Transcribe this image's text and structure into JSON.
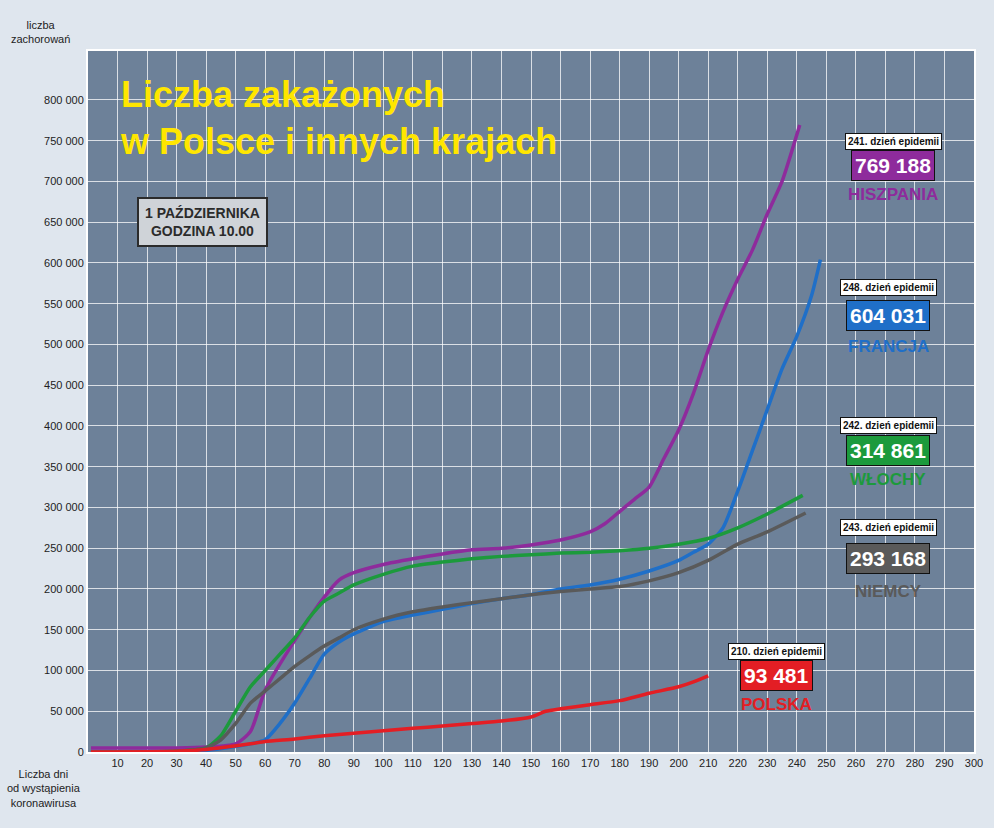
{
  "chart_data": {
    "type": "line",
    "title": [
      "Liczba zakażonych",
      "w Polsce i innych krajach"
    ],
    "subtitle": [
      "1 PAŹDZIERNIKA",
      "GODZINA 10.00"
    ],
    "y_label": [
      "liczba",
      "zachorowań"
    ],
    "x_label": [
      "Liczba dni",
      "od wystąpienia",
      "koronawirusa"
    ],
    "xlim": [
      0,
      300
    ],
    "xticks": [
      10,
      20,
      30,
      40,
      50,
      60,
      70,
      80,
      90,
      100,
      110,
      120,
      130,
      140,
      150,
      160,
      170,
      180,
      190,
      200,
      210,
      220,
      230,
      240,
      250,
      260,
      270,
      280,
      290,
      300
    ],
    "ylim": [
      0,
      860000
    ],
    "yticks": [
      0,
      {
        "value": 50000,
        "label": "50 000"
      },
      {
        "value": 100000,
        "label": "100 000"
      },
      {
        "value": 150000,
        "label": "150 000"
      },
      {
        "value": 200000,
        "label": "200 000"
      },
      {
        "value": 250000,
        "label": "250 000"
      },
      {
        "value": 300000,
        "label": "300 000"
      },
      {
        "value": 350000,
        "label": "350 000"
      },
      {
        "value": 400000,
        "label": "400 000"
      },
      {
        "value": 450000,
        "label": "450 000"
      },
      {
        "value": 500000,
        "label": "500 000"
      },
      {
        "value": 550000,
        "label": "550 000"
      },
      {
        "value": 600000,
        "label": "600 000"
      },
      {
        "value": 650000,
        "label": "650 000"
      },
      {
        "value": 700000,
        "label": "700 000"
      },
      {
        "value": 750000,
        "label": "750 000"
      },
      {
        "value": 800000,
        "label": "800 000"
      }
    ],
    "grid": true,
    "series": [
      {
        "name": "HISZPANIA",
        "color": "#8e2b9c",
        "day_label": "241. dzień epidemii",
        "total_label": "769 188",
        "x": [
          1,
          30,
          40,
          50,
          55,
          60,
          70,
          80,
          85,
          90,
          100,
          110,
          120,
          130,
          140,
          150,
          160,
          170,
          175,
          180,
          185,
          190,
          195,
          200,
          205,
          210,
          215,
          220,
          225,
          230,
          235,
          241
        ],
        "values": [
          5000,
          5000,
          6000,
          10000,
          25000,
          76000,
          137000,
          190000,
          211000,
          220000,
          230000,
          237000,
          243000,
          248000,
          250000,
          254000,
          260000,
          270000,
          280000,
          295000,
          310000,
          325000,
          360000,
          395000,
          440000,
          493000,
          540000,
          580000,
          616000,
          660000,
          700000,
          769188
        ]
      },
      {
        "name": "FRANCJA",
        "color": "#1f6fc8",
        "day_label": "248. dzień epidemii",
        "total_label": "604 031",
        "x": [
          1,
          40,
          55,
          60,
          65,
          70,
          75,
          80,
          85,
          90,
          100,
          110,
          120,
          130,
          140,
          150,
          160,
          170,
          180,
          190,
          200,
          205,
          210,
          215,
          220,
          225,
          230,
          235,
          240,
          245,
          248
        ],
        "values": [
          0,
          2000,
          10000,
          15000,
          35000,
          60000,
          90000,
          120000,
          135000,
          145000,
          160000,
          168000,
          175000,
          182000,
          188000,
          193000,
          200000,
          205000,
          212000,
          222000,
          235000,
          245000,
          255000,
          275000,
          320000,
          370000,
          420000,
          470000,
          510000,
          560000,
          604031
        ]
      },
      {
        "name": "WŁOCHY",
        "color": "#1c9a3c",
        "day_label": "242. dzień epidemii",
        "total_label": "314 861",
        "x": [
          1,
          30,
          40,
          45,
          50,
          55,
          60,
          65,
          70,
          75,
          80,
          85,
          90,
          100,
          110,
          120,
          130,
          140,
          150,
          160,
          170,
          180,
          190,
          200,
          210,
          220,
          230,
          242
        ],
        "values": [
          0,
          1000,
          5000,
          20000,
          50000,
          80000,
          100000,
          120000,
          140000,
          165000,
          185000,
          195000,
          205000,
          218000,
          228000,
          233000,
          237000,
          240000,
          242000,
          244000,
          245000,
          247000,
          250000,
          255000,
          262000,
          275000,
          292000,
          314861
        ]
      },
      {
        "name": "NIEMCY",
        "color": "#5a5a5a",
        "day_label": "243. dzień epidemii",
        "total_label": "293 168",
        "x": [
          1,
          30,
          40,
          45,
          50,
          55,
          60,
          65,
          70,
          75,
          80,
          85,
          90,
          100,
          110,
          120,
          130,
          140,
          150,
          160,
          170,
          180,
          190,
          200,
          210,
          220,
          230,
          243
        ],
        "values": [
          0,
          1000,
          5000,
          15000,
          35000,
          60000,
          75000,
          90000,
          105000,
          118000,
          130000,
          140000,
          150000,
          163000,
          172000,
          178000,
          183000,
          188000,
          193000,
          197000,
          200000,
          203000,
          210000,
          220000,
          235000,
          255000,
          270000,
          293168
        ]
      },
      {
        "name": "POLSKA",
        "color": "#e31e24",
        "day_label": "210. dzień epidemii",
        "total_label": "93 481",
        "x": [
          1,
          30,
          40,
          55,
          60,
          70,
          80,
          90,
          100,
          110,
          120,
          130,
          140,
          150,
          155,
          160,
          170,
          180,
          190,
          200,
          205,
          210
        ],
        "values": [
          0,
          1000,
          3000,
          10000,
          13000,
          16000,
          20000,
          23000,
          26000,
          29000,
          32000,
          35000,
          38000,
          43000,
          50000,
          53000,
          58000,
          63000,
          72000,
          80000,
          86000,
          93481
        ]
      }
    ]
  }
}
